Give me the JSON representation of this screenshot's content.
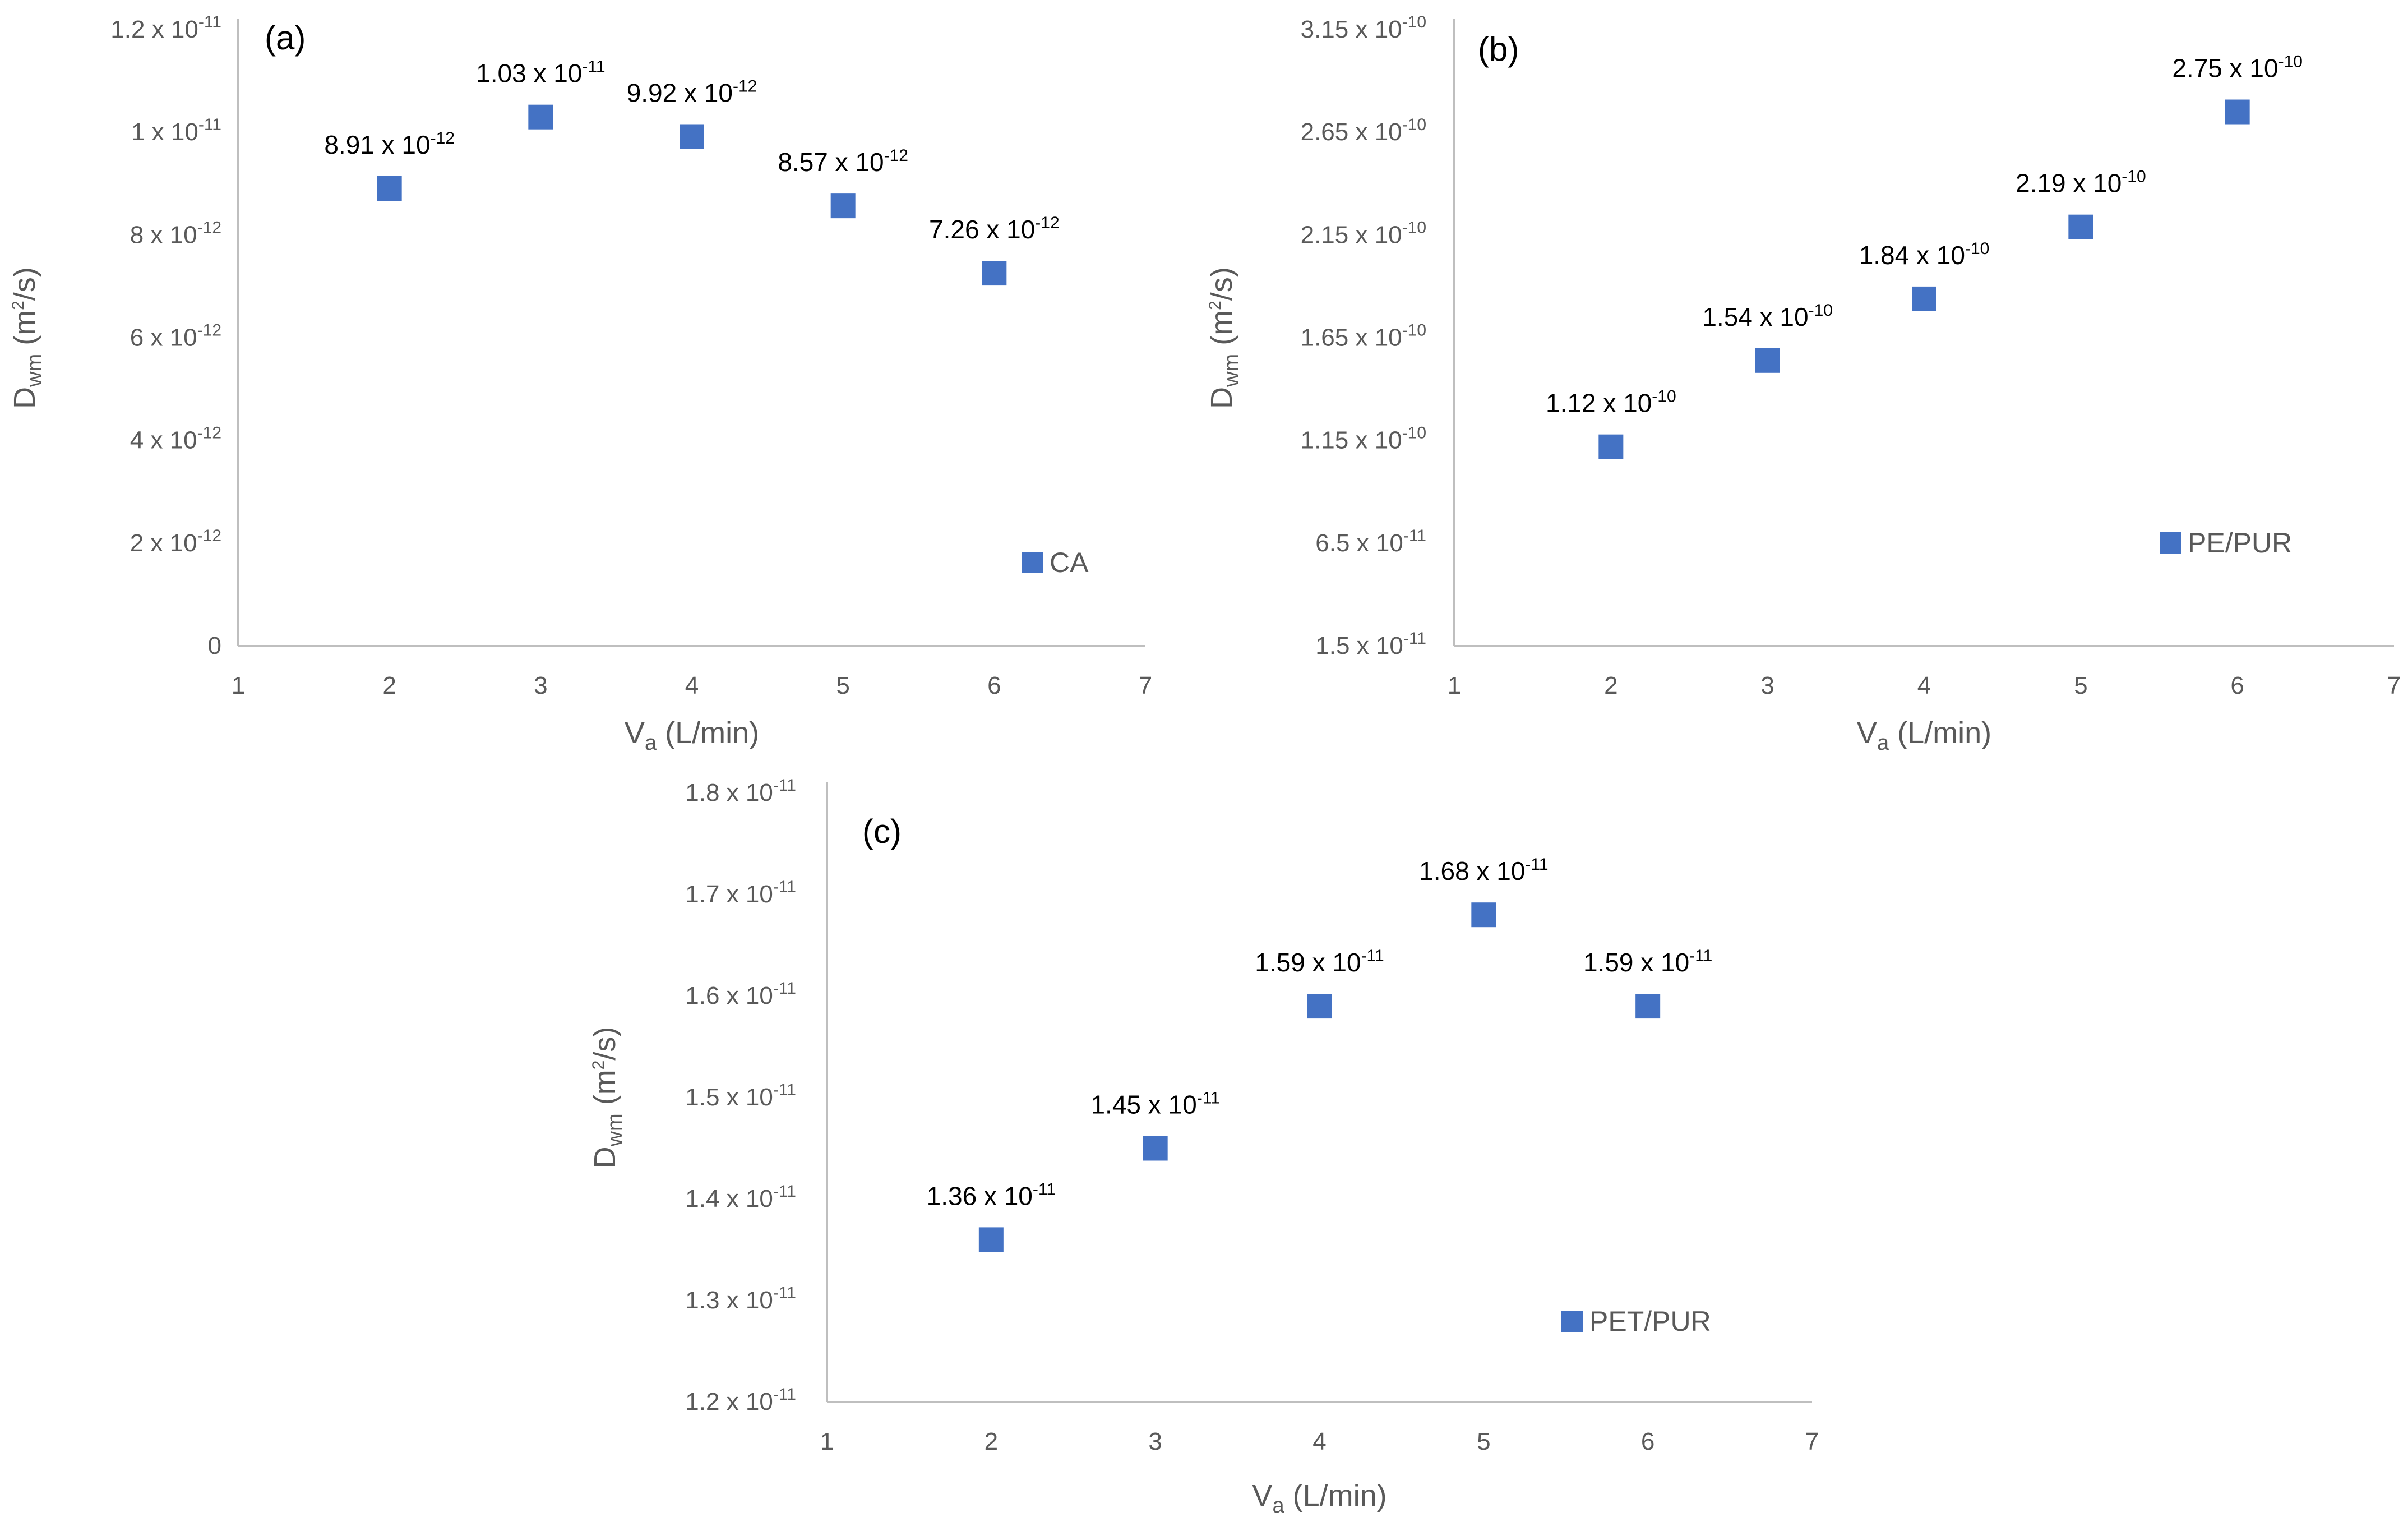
{
  "chart_data": [
    {
      "type": "scatter",
      "panel_label": "(a)",
      "xlabel": {
        "main": "V",
        "sub": "a",
        "rest": " (L/min)"
      },
      "ylabel": {
        "main": "D",
        "sub": "wm",
        "rest": " (m",
        "sup": "2",
        "tail": "/s)"
      },
      "xlim": [
        1,
        7
      ],
      "xticks": [
        "1",
        "2",
        "3",
        "4",
        "5",
        "6",
        "7"
      ],
      "ylim": [
        0,
        1.2e-11
      ],
      "yticks": [
        {
          "value": 0,
          "mant": "0",
          "exp": ""
        },
        {
          "value": 2e-12,
          "mant": "2 x 10",
          "exp": "-12"
        },
        {
          "value": 4e-12,
          "mant": "4 x 10",
          "exp": "-12"
        },
        {
          "value": 6e-12,
          "mant": "6 x 10",
          "exp": "-12"
        },
        {
          "value": 8e-12,
          "mant": "8 x 10",
          "exp": "-12"
        },
        {
          "value": 1e-11,
          "mant": "1 x 10",
          "exp": "-11"
        },
        {
          "value": 1.2e-11,
          "mant": "1.2 x 10",
          "exp": "-11"
        }
      ],
      "legend": "CA",
      "legend_position": "bottom-right",
      "series": [
        {
          "name": "CA",
          "color": "#4472C4",
          "points": [
            {
              "x": 2,
              "y": 8.91e-12,
              "label_mant": "8.91 x 10",
              "label_exp": "-12"
            },
            {
              "x": 3,
              "y": 1.03e-11,
              "label_mant": "1.03 x 10",
              "label_exp": "-11"
            },
            {
              "x": 4,
              "y": 9.92e-12,
              "label_mant": "9.92 x 10",
              "label_exp": "-12"
            },
            {
              "x": 5,
              "y": 8.57e-12,
              "label_mant": "8.57 x 10",
              "label_exp": "-12"
            },
            {
              "x": 6,
              "y": 7.26e-12,
              "label_mant": "7.26 x 10",
              "label_exp": "-12"
            }
          ]
        }
      ]
    },
    {
      "type": "scatter",
      "panel_label": "(b)",
      "xlabel": {
        "main": "V",
        "sub": "a",
        "rest": " (L/min)"
      },
      "ylabel": {
        "main": "D",
        "sub": "wm",
        "rest": " (m",
        "sup": "2",
        "tail": "/s)"
      },
      "xlim": [
        1,
        7
      ],
      "xticks": [
        "1",
        "2",
        "3",
        "4",
        "5",
        "6",
        "7"
      ],
      "ylim": [
        1.5e-11,
        3.15e-10
      ],
      "yticks": [
        {
          "value": 1.5e-11,
          "mant": "1.5 x 10",
          "exp": "-11"
        },
        {
          "value": 6.5e-11,
          "mant": "6.5 x 10",
          "exp": "-11"
        },
        {
          "value": 1.15e-10,
          "mant": "1.15 x 10",
          "exp": "-10"
        },
        {
          "value": 1.65e-10,
          "mant": "1.65 x 10",
          "exp": "-10"
        },
        {
          "value": 2.15e-10,
          "mant": "2.15 x 10",
          "exp": "-10"
        },
        {
          "value": 2.65e-10,
          "mant": "2.65 x 10",
          "exp": "-10"
        },
        {
          "value": 3.15e-10,
          "mant": "3.15 x 10",
          "exp": "-10"
        }
      ],
      "legend": "PE/PUR",
      "legend_position": "bottom-right",
      "series": [
        {
          "name": "PE/PUR",
          "color": "#4472C4",
          "points": [
            {
              "x": 2,
              "y": 1.12e-10,
              "label_mant": "1.12 x 10",
              "label_exp": "-10"
            },
            {
              "x": 3,
              "y": 1.54e-10,
              "label_mant": "1.54 x 10",
              "label_exp": "-10"
            },
            {
              "x": 4,
              "y": 1.84e-10,
              "label_mant": "1.84 x 10",
              "label_exp": "-10"
            },
            {
              "x": 5,
              "y": 2.19e-10,
              "label_mant": "2.19 x 10",
              "label_exp": "-10"
            },
            {
              "x": 6,
              "y": 2.75e-10,
              "label_mant": "2.75 x 10",
              "label_exp": "-10"
            }
          ]
        }
      ]
    },
    {
      "type": "scatter",
      "panel_label": "(c)",
      "xlabel": {
        "main": "V",
        "sub": "a",
        "rest": " (L/min)"
      },
      "ylabel": {
        "main": "D",
        "sub": "wm",
        "rest": " (m",
        "sup": "2",
        "tail": "/s)"
      },
      "xlim": [
        1,
        7
      ],
      "xticks": [
        "1",
        "2",
        "3",
        "4",
        "5",
        "6",
        "7"
      ],
      "ylim": [
        1.2e-11,
        1.8e-11
      ],
      "yticks": [
        {
          "value": 1.2e-11,
          "mant": "1.2 x 10",
          "exp": "-11"
        },
        {
          "value": 1.3e-11,
          "mant": "1.3 x 10",
          "exp": "-11"
        },
        {
          "value": 1.4e-11,
          "mant": "1.4 x 10",
          "exp": "-11"
        },
        {
          "value": 1.5e-11,
          "mant": "1.5 x 10",
          "exp": "-11"
        },
        {
          "value": 1.6e-11,
          "mant": "1.6 x 10",
          "exp": "-11"
        },
        {
          "value": 1.7e-11,
          "mant": "1.7 x 10",
          "exp": "-11"
        },
        {
          "value": 1.8e-11,
          "mant": "1.8 x 10",
          "exp": "-11"
        }
      ],
      "legend": "PET/PUR",
      "legend_position": "bottom-right",
      "series": [
        {
          "name": "PET/PUR",
          "color": "#4472C4",
          "points": [
            {
              "x": 2,
              "y": 1.36e-11,
              "label_mant": "1.36 x 10",
              "label_exp": "-11"
            },
            {
              "x": 3,
              "y": 1.45e-11,
              "label_mant": "1.45 x 10",
              "label_exp": "-11"
            },
            {
              "x": 4,
              "y": 1.59e-11,
              "label_mant": "1.59 x 10",
              "label_exp": "-11"
            },
            {
              "x": 5,
              "y": 1.68e-11,
              "label_mant": "1.68 x 10",
              "label_exp": "-11"
            },
            {
              "x": 6,
              "y": 1.59e-11,
              "label_mant": "1.59 x 10",
              "label_exp": "-11"
            }
          ]
        }
      ]
    }
  ]
}
